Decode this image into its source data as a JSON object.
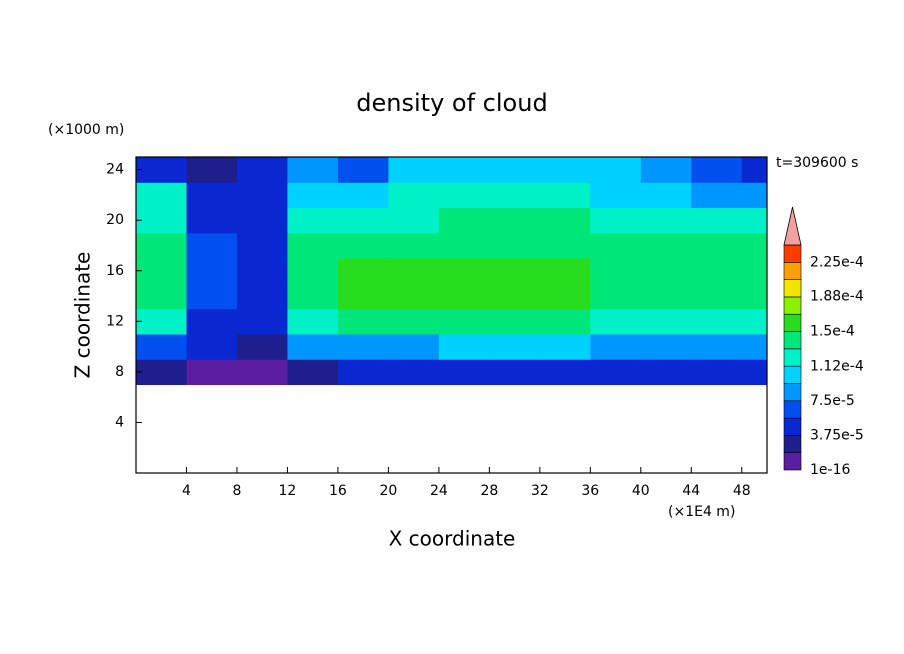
{
  "chart_data": {
    "type": "contour",
    "title": "density of cloud",
    "xlabel": "X coordinate",
    "ylabel": "Z coordinate",
    "xunit": "(×1E4 m)",
    "yunit": "(×1000 m)",
    "annotation": "t=309600 s",
    "xlim": [
      0,
      50
    ],
    "ylim": [
      0,
      25
    ],
    "xticks": [
      4,
      8,
      12,
      16,
      20,
      24,
      28,
      32,
      36,
      40,
      44,
      48
    ],
    "yticks": [
      4,
      8,
      12,
      16,
      20,
      24
    ],
    "x": [
      2,
      6,
      10,
      14,
      18,
      22,
      26,
      30,
      34,
      38,
      42,
      46,
      50
    ],
    "y": [
      8,
      10,
      12,
      14,
      16,
      18,
      20,
      22,
      24
    ],
    "z": [
      [
        2e-05,
        1e-05,
        1e-05,
        3e-05,
        4e-05,
        4e-05,
        4e-05,
        4e-05,
        4e-05,
        4e-05,
        4e-05,
        4e-05,
        4e-05
      ],
      [
        6e-05,
        4e-05,
        3e-05,
        8e-05,
        9e-05,
        9e-05,
        9.5e-05,
        9.5e-05,
        9.5e-05,
        9e-05,
        9e-05,
        9e-05,
        9e-05
      ],
      [
        0.00012,
        5e-05,
        4e-05,
        0.00012,
        0.000135,
        0.000135,
        0.00014,
        0.00014,
        0.00014,
        0.00013,
        0.00013,
        0.00013,
        0.00013
      ],
      [
        0.00014,
        6e-05,
        5e-05,
        0.00014,
        0.000155,
        0.000155,
        0.000155,
        0.000155,
        0.000155,
        0.00015,
        0.000145,
        0.000145,
        0.00014
      ],
      [
        0.00015,
        7e-05,
        5e-05,
        0.00014,
        0.000155,
        0.000155,
        0.000155,
        0.000155,
        0.000155,
        0.00015,
        0.000145,
        0.000145,
        0.00014
      ],
      [
        0.00014,
        6e-05,
        5e-05,
        0.000135,
        0.00014,
        0.000145,
        0.000145,
        0.000145,
        0.000145,
        0.00014,
        0.000135,
        0.00014,
        0.000135
      ],
      [
        0.00013,
        5e-05,
        4e-05,
        0.00012,
        0.00013,
        0.00013,
        0.000135,
        0.000135,
        0.000135,
        0.00013,
        0.00012,
        0.000125,
        0.00013
      ],
      [
        0.00012,
        4e-05,
        5e-05,
        0.000105,
        0.00011,
        0.00012,
        0.00012,
        0.00012,
        0.00012,
        0.0001,
        0.00011,
        8e-05,
        9e-05
      ],
      [
        5e-05,
        3e-05,
        4e-05,
        9e-05,
        7e-05,
        0.000105,
        0.000105,
        0.000105,
        0.000105,
        0.000105,
        8e-05,
        6e-05,
        4e-05
      ]
    ],
    "colors": [
      "#5a1ea0",
      "#1e1e8c",
      "#0a28d2",
      "#0050f0",
      "#0096ff",
      "#00d2ff",
      "#00f0c8",
      "#00e678",
      "#28dc1e",
      "#8cf000",
      "#f0e600",
      "#ffa000",
      "#ff3c00"
    ],
    "over_color": "#f4a0a0",
    "clim": [
      1e-16,
      0.00024375
    ],
    "cticks": [
      1e-16,
      {
        "value": 3.75e-05,
        "label": "3.75e-5"
      },
      {
        "value": 7.5e-05,
        "label": "7.5e-5"
      },
      {
        "value": 0.000112,
        "label": "1.12e-4"
      },
      {
        "value": 0.00015,
        "label": "1.5e-4"
      },
      {
        "value": 0.000188,
        "label": "1.88e-4"
      },
      {
        "value": 0.000225,
        "label": "2.25e-4"
      }
    ]
  }
}
